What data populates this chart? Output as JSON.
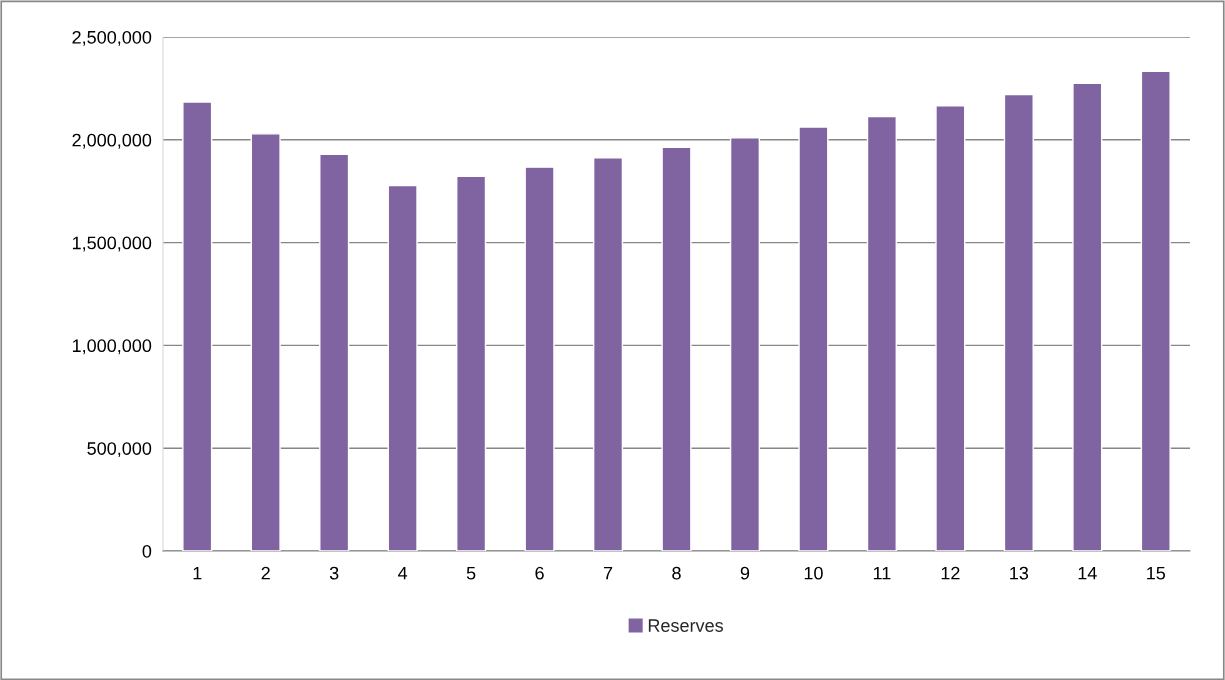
{
  "chart_data": {
    "type": "bar",
    "categories": [
      "1",
      "2",
      "3",
      "4",
      "5",
      "6",
      "7",
      "8",
      "9",
      "10",
      "11",
      "12",
      "13",
      "14",
      "15"
    ],
    "series": [
      {
        "name": "Reserves",
        "color": "#8064a2",
        "values": [
          2184000,
          2029000,
          1929000,
          1777000,
          1822000,
          1867000,
          1913000,
          1964000,
          2010000,
          2062000,
          2113000,
          2165000,
          2220000,
          2275000,
          2333000
        ]
      }
    ],
    "ylim": [
      0,
      2500000
    ],
    "yticks": [
      {
        "value": 0,
        "label": "0"
      },
      {
        "value": 500000,
        "label": "500,000"
      },
      {
        "value": 1000000,
        "label": "1,000,000"
      },
      {
        "value": 1500000,
        "label": "1,500,000"
      },
      {
        "value": 2000000,
        "label": "2,000,000"
      },
      {
        "value": 2500000,
        "label": "2,500,000"
      }
    ],
    "grid": "y",
    "legend": "bottom"
  }
}
